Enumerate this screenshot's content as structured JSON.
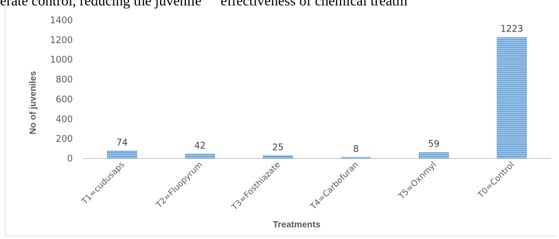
{
  "page": {
    "top_text_left": "erate control, reducing the juvenile",
    "top_text_right": "effectiveness of chemical treatm"
  },
  "chart_data": {
    "type": "bar",
    "categories": [
      "T1=cudusaps",
      "T2=Fluopyrum",
      "T3=Fosthiazate",
      "T4=Carbofuran",
      "T5=Oxnmyl",
      "T0=Control"
    ],
    "values": [
      74,
      42,
      25,
      8,
      59,
      1223
    ],
    "data_labels": [
      "74",
      "42",
      "25",
      "8",
      "59",
      "1223"
    ],
    "title": "",
    "xlabel": "Treatments",
    "ylabel": "No of juveniles",
    "ylim": [
      0,
      1400
    ],
    "yticks": [
      0,
      200,
      400,
      600,
      800,
      1000,
      1200,
      1400
    ],
    "grid": false,
    "legend": "none",
    "bar_color": "#9dc3e6",
    "bar_stripe_color": "#5b9bd5"
  }
}
